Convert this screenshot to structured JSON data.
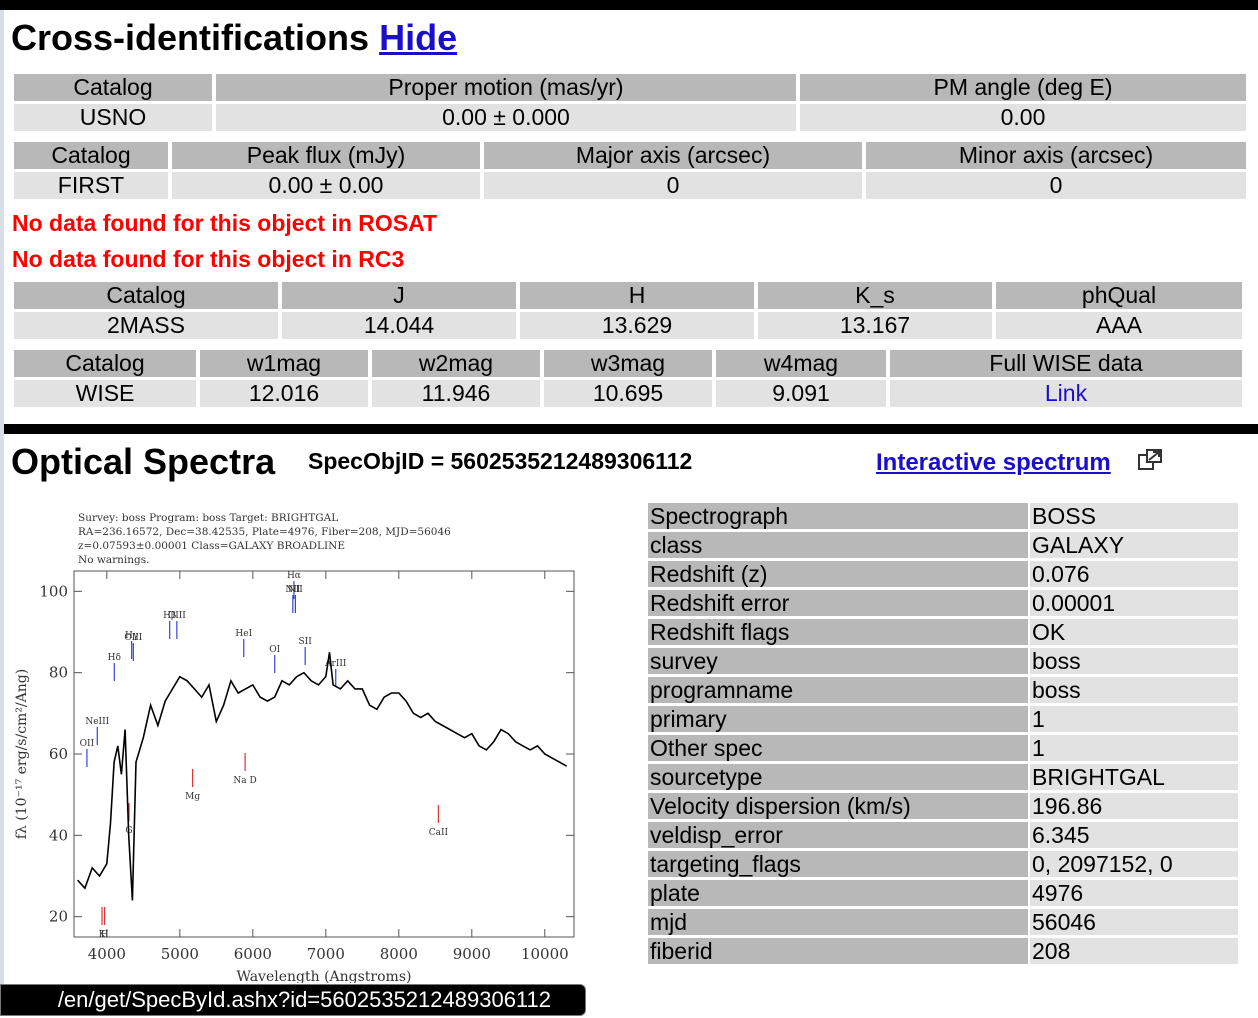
{
  "crossid": {
    "title": "Cross-identifications",
    "hide_label": "Hide",
    "usno": {
      "headers": [
        "Catalog",
        "Proper motion (mas/yr)",
        "PM angle (deg E)"
      ],
      "values": [
        "USNO",
        "0.00 ± 0.000",
        "0.00"
      ]
    },
    "first": {
      "headers": [
        "Catalog",
        "Peak flux (mJy)",
        "Major axis (arcsec)",
        "Minor axis (arcsec)"
      ],
      "values": [
        "FIRST",
        "0.00 ± 0.00",
        "0",
        "0"
      ]
    },
    "rosat_msg": "No data found for this object in ROSAT",
    "rc3_msg": "No data found for this object in RC3",
    "twomass": {
      "headers": [
        "Catalog",
        "J",
        "H",
        "K_s",
        "phQual"
      ],
      "values": [
        "2MASS",
        "14.044",
        "13.629",
        "13.167",
        "AAA"
      ]
    },
    "wise": {
      "headers": [
        "Catalog",
        "w1mag",
        "w2mag",
        "w3mag",
        "w4mag",
        "Full WISE data"
      ],
      "values": [
        "WISE",
        "12.016",
        "11.946",
        "10.695",
        "9.091"
      ],
      "link_label": "Link"
    }
  },
  "optical": {
    "title": "Optical Spectra",
    "specobjid_label": "SpecObjID = 5602535212489306112",
    "interactive_label": "Interactive spectrum",
    "properties": [
      [
        "Spectrograph",
        "BOSS"
      ],
      [
        "class",
        "GALAXY"
      ],
      [
        "Redshift (z)",
        "0.076"
      ],
      [
        "Redshift error",
        "0.00001"
      ],
      [
        "Redshift flags",
        "OK"
      ],
      [
        "survey",
        "boss"
      ],
      [
        "programname",
        "boss"
      ],
      [
        "primary",
        "1"
      ],
      [
        "Other spec",
        "1"
      ],
      [
        "sourcetype",
        "BRIGHTGAL"
      ],
      [
        "Velocity dispersion (km/s)",
        "196.86"
      ],
      [
        "veldisp_error",
        "6.345"
      ],
      [
        "targeting_flags",
        "0, 2097152, 0"
      ],
      [
        "plate",
        "4976"
      ],
      [
        "mjd",
        "56046"
      ],
      [
        "fiberid",
        "208"
      ]
    ]
  },
  "chart_data": {
    "type": "line",
    "header_lines": [
      "Survey: boss  Program: boss  Target:  BRIGHTGAL",
      "RA=236.16572, Dec=38.42535, Plate=4976, Fiber=208, MJD=56046",
      "z=0.07593±0.00001  Class=GALAXY  BROADLINE",
      "No warnings."
    ],
    "xlabel": "Wavelength (Angstroms)",
    "ylabel": "fλ (10⁻¹⁷ erg/s/cm²/Ang)",
    "xlim": [
      3550,
      10400
    ],
    "ylim": [
      15,
      105
    ],
    "xticks": [
      4000,
      5000,
      6000,
      7000,
      8000,
      9000,
      10000
    ],
    "yticks": [
      20,
      40,
      60,
      80,
      100
    ],
    "x": [
      3600,
      3700,
      3800,
      3900,
      4000,
      4050,
      4100,
      4150,
      4200,
      4250,
      4300,
      4350,
      4400,
      4500,
      4600,
      4700,
      4800,
      4900,
      5000,
      5100,
      5200,
      5300,
      5400,
      5500,
      5600,
      5700,
      5800,
      5900,
      6000,
      6100,
      6200,
      6300,
      6400,
      6500,
      6600,
      6700,
      6800,
      6900,
      7000,
      7050,
      7100,
      7200,
      7300,
      7400,
      7500,
      7600,
      7700,
      7800,
      7900,
      8000,
      8100,
      8200,
      8300,
      8400,
      8500,
      8600,
      8700,
      8800,
      8900,
      9000,
      9100,
      9200,
      9300,
      9400,
      9500,
      9600,
      9700,
      9800,
      9900,
      10000,
      10100,
      10200,
      10300
    ],
    "y": [
      29,
      27,
      32,
      30,
      33,
      43,
      58,
      62,
      55,
      66,
      40,
      24,
      58,
      64,
      72,
      67,
      73,
      76,
      79,
      78,
      76,
      74,
      77,
      68,
      72,
      78,
      75,
      76,
      77,
      74,
      73,
      74,
      78,
      77,
      79,
      80,
      78,
      77,
      79,
      85,
      77,
      76,
      78,
      76,
      76,
      72,
      71,
      74,
      75,
      75,
      73,
      70,
      69,
      70,
      68,
      67,
      66,
      65,
      64,
      65,
      62,
      61,
      63,
      66,
      65,
      63,
      62,
      61,
      62,
      60,
      59,
      58,
      57
    ],
    "emission_lines": [
      {
        "label": "OII",
        "x": 3727
      },
      {
        "label": "NeIII",
        "x": 3869
      },
      {
        "label": "Hδ",
        "x": 4102
      },
      {
        "label": "Hγ",
        "x": 4340
      },
      {
        "label": "OIII",
        "x": 4363
      },
      {
        "label": "Hβ",
        "x": 4861
      },
      {
        "label": "OIII",
        "x": 4959
      },
      {
        "label": "HeI",
        "x": 5876
      },
      {
        "label": "OI",
        "x": 6300
      },
      {
        "label": "NII",
        "x": 6548
      },
      {
        "label": "Hα",
        "x": 6563
      },
      {
        "label": "NII",
        "x": 6583
      },
      {
        "label": "SII",
        "x": 6717
      },
      {
        "label": "ArIII",
        "x": 7136
      }
    ],
    "absorption_lines": [
      {
        "label": "K",
        "x": 3934
      },
      {
        "label": "H",
        "x": 3969
      },
      {
        "label": "G",
        "x": 4304
      },
      {
        "label": "Mg",
        "x": 5175
      },
      {
        "label": "Na D",
        "x": 5894
      },
      {
        "label": "CaII",
        "x": 8542
      }
    ]
  },
  "status_bar": {
    "url": "/en/get/SpecById.ashx?id=5602535212489306112"
  }
}
